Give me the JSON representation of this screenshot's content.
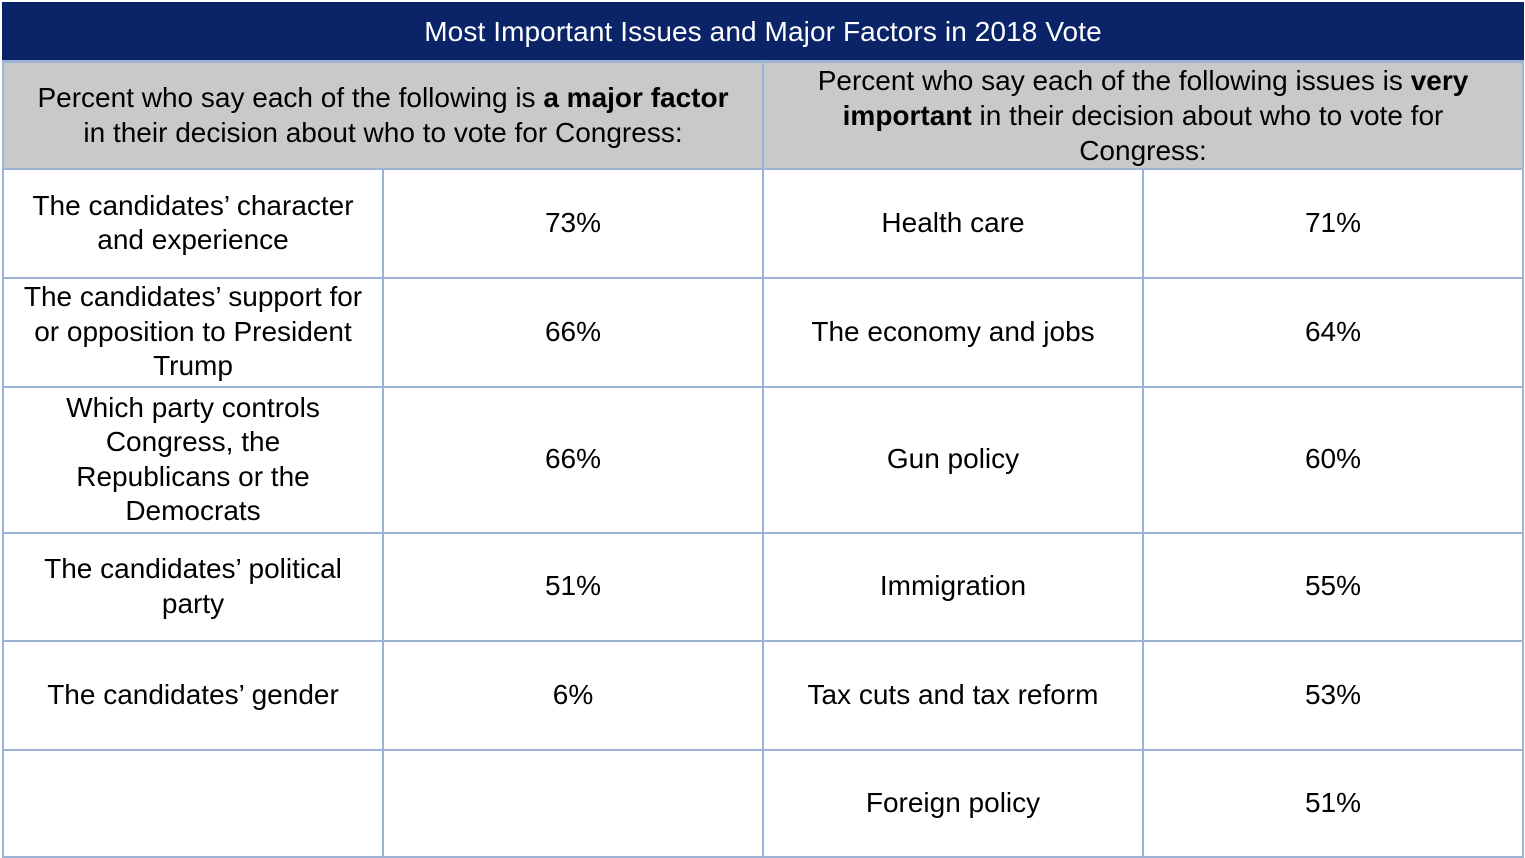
{
  "title": "Most Important Issues and Major Factors in 2018 Vote",
  "left_header": {
    "pre": "Percent who say each of the following is ",
    "bold": "a major factor",
    "post": " in their decision about who to vote for Congress:"
  },
  "right_header": {
    "pre": "Percent who say each of the following issues is ",
    "bold": "very important",
    "post": " in their decision about who to vote for Congress:"
  },
  "rows": [
    {
      "factor": "The candidates’ character and experience",
      "factor_value": "73%",
      "issue": "Health care",
      "issue_value": "71%"
    },
    {
      "factor": "The candidates’ support for or opposition to President Trump",
      "factor_value": "66%",
      "issue": "The economy and jobs",
      "issue_value": "64%"
    },
    {
      "factor": "Which party controls Congress, the Republicans or the Democrats",
      "factor_value": "66%",
      "issue": "Gun policy",
      "issue_value": "60%"
    },
    {
      "factor": "The candidates’ political party",
      "factor_value": "51%",
      "issue": "Immigration",
      "issue_value": "55%"
    },
    {
      "factor": "The candidates’ gender",
      "factor_value": "6%",
      "issue": "Tax cuts and tax reform",
      "issue_value": "53%"
    },
    {
      "factor": "",
      "factor_value": "",
      "issue": "Foreign policy",
      "issue_value": "51%"
    }
  ],
  "colors": {
    "title_background": "#0b2468",
    "title_text": "#ffffff",
    "subheader_background": "#c9c9c9",
    "grid_lines": "#9db3d6"
  }
}
